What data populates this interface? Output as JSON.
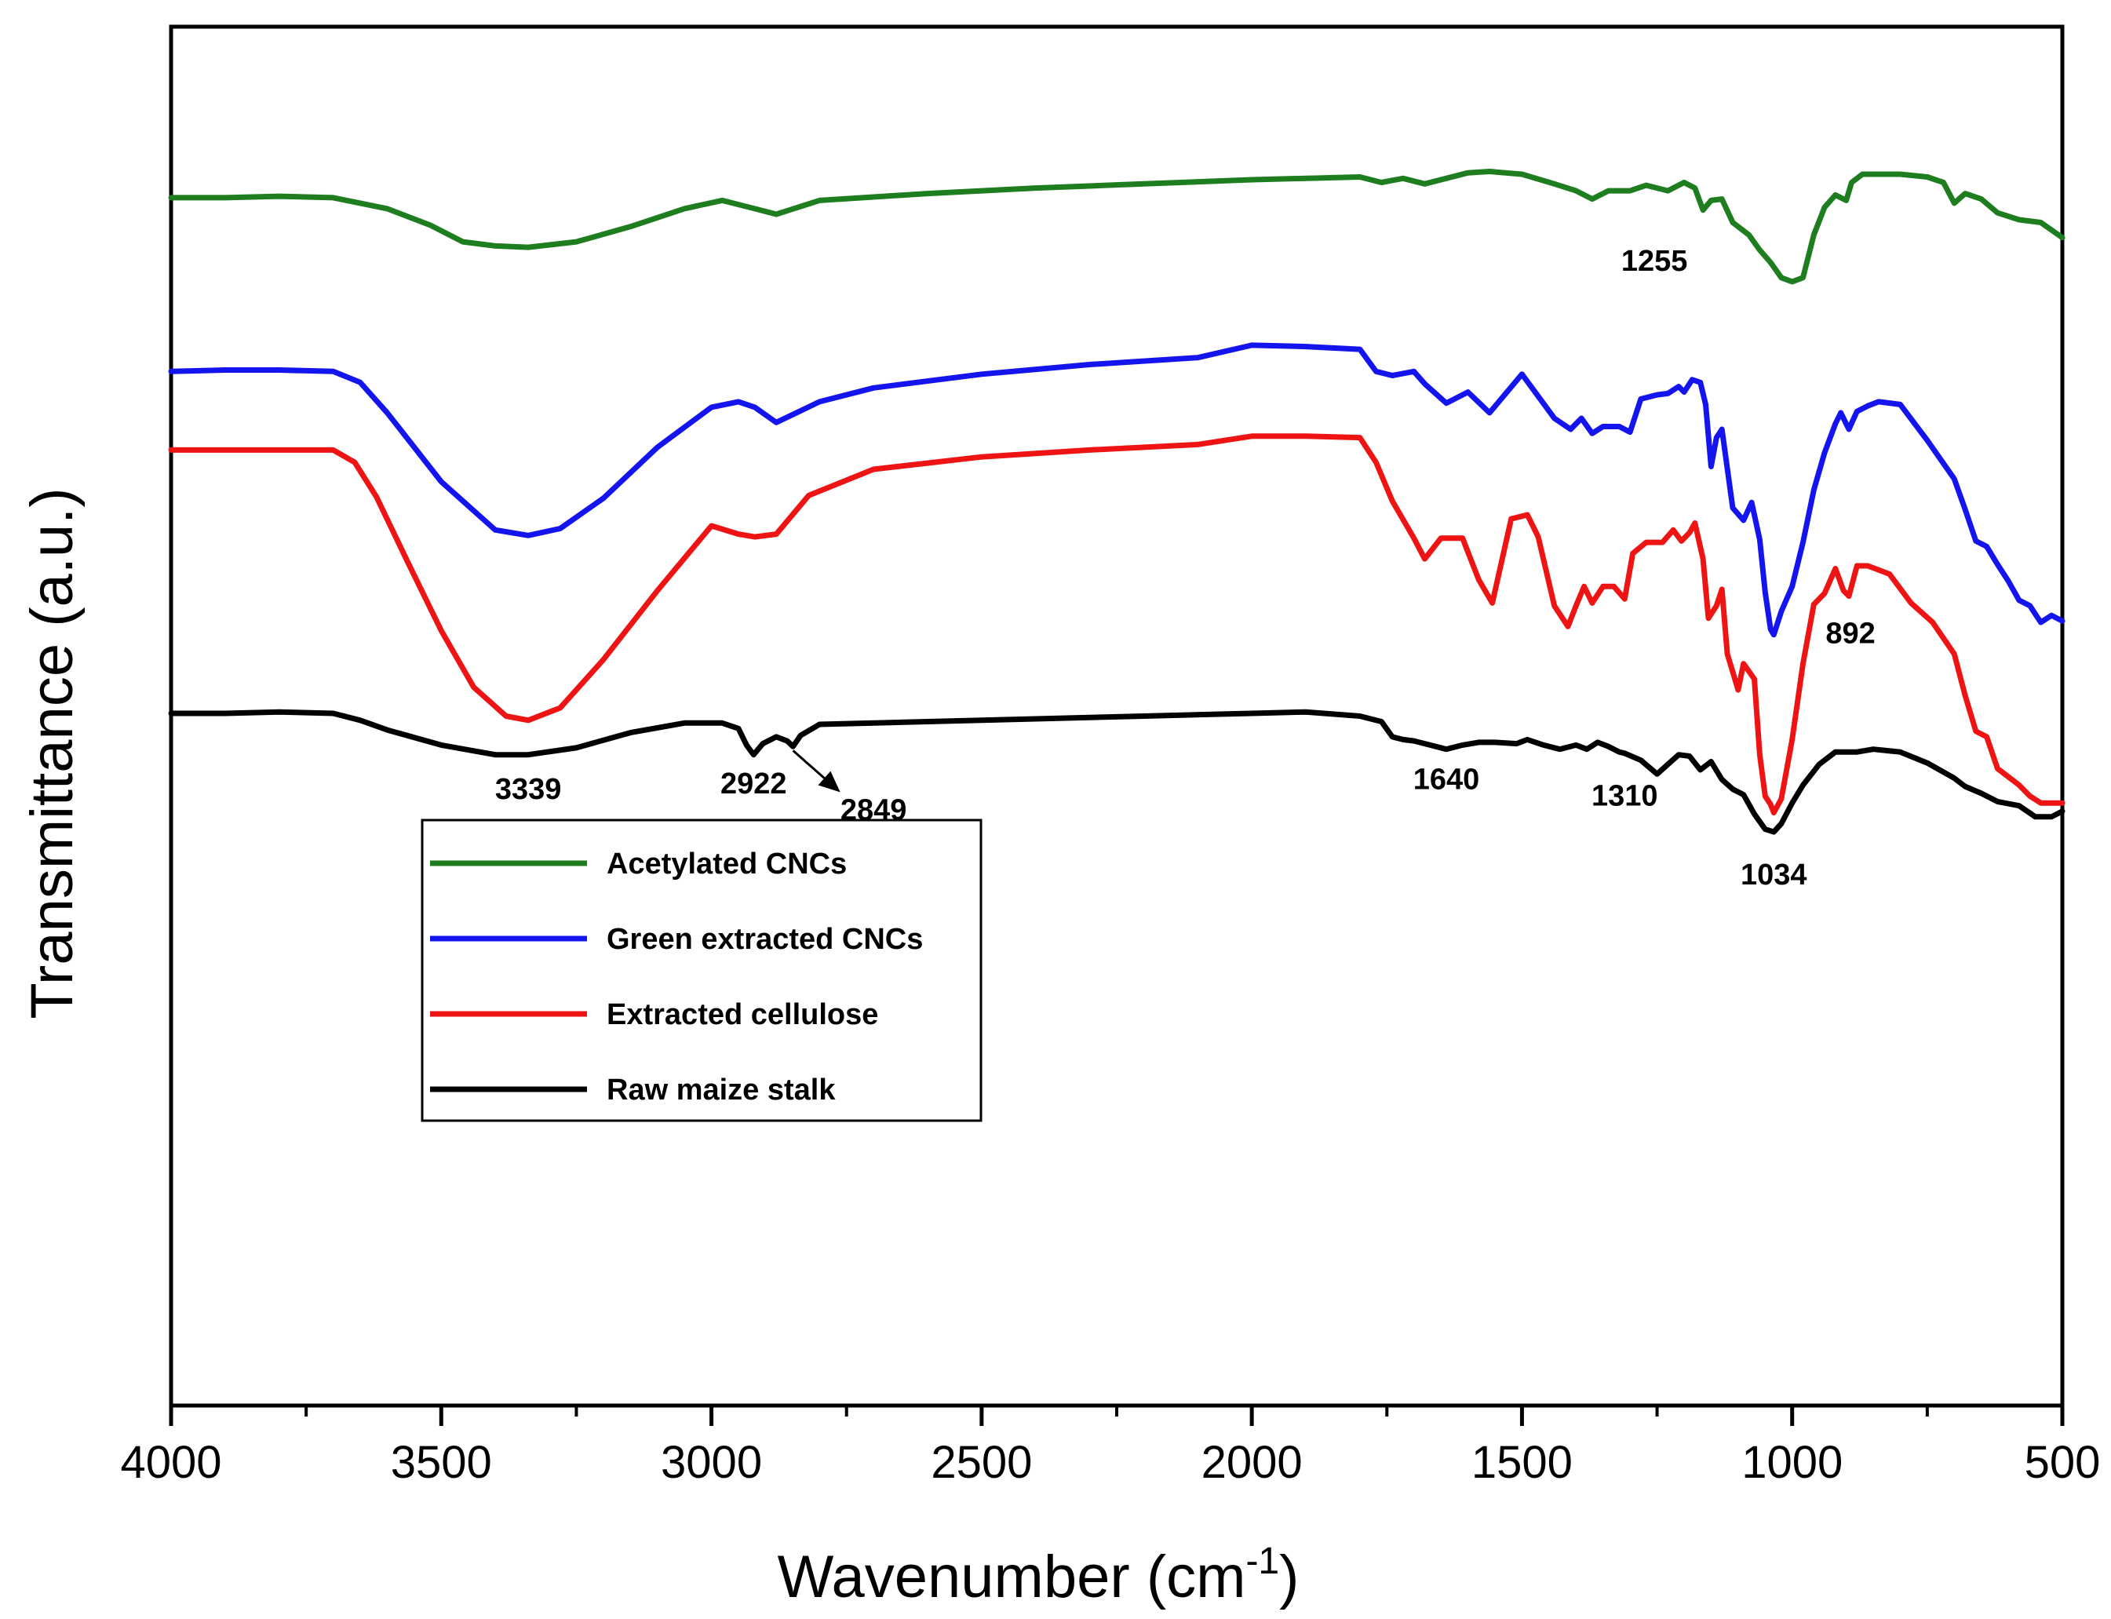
{
  "chart_data": {
    "type": "line",
    "title": "",
    "xlabel": "Wavenumber (cm",
    "xlabel_sup": "-1",
    "xlabel_close": ")",
    "ylabel": "Transmittance (a.u.)",
    "xlim": [
      4000,
      500
    ],
    "ylim": [
      0,
      100
    ],
    "x_ticks": [
      4000,
      3500,
      3000,
      2500,
      2000,
      1500,
      1000,
      500
    ],
    "x_tick_labels": [
      "4000",
      "3500",
      "3000",
      "2500",
      "2000",
      "1500",
      "1000",
      "500"
    ],
    "y_ticks_shown": false,
    "legend_position": "center-left",
    "series": [
      {
        "name": "Acetylated CNCs",
        "color": "#1e7d1e",
        "x": [
          4000,
          3900,
          3800,
          3700,
          3600,
          3520,
          3460,
          3400,
          3339,
          3250,
          3150,
          3050,
          2980,
          2920,
          2880,
          2800,
          2600,
          2400,
          2200,
          2000,
          1800,
          1760,
          1720,
          1680,
          1600,
          1560,
          1500,
          1440,
          1400,
          1370,
          1340,
          1300,
          1270,
          1230,
          1200,
          1180,
          1165,
          1150,
          1130,
          1110,
          1080,
          1060,
          1040,
          1020,
          1000,
          980,
          960,
          940,
          920,
          900,
          890,
          870,
          850,
          800,
          750,
          720,
          700,
          680,
          650,
          620,
          580,
          540,
          500
        ],
        "y": [
          87.6,
          87.6,
          87.7,
          87.6,
          86.8,
          85.6,
          84.4,
          84.1,
          84.0,
          84.4,
          85.5,
          86.8,
          87.4,
          86.8,
          86.4,
          87.4,
          87.9,
          88.3,
          88.6,
          88.9,
          89.1,
          88.7,
          89.0,
          88.6,
          89.4,
          89.5,
          89.3,
          88.6,
          88.1,
          87.5,
          88.1,
          88.1,
          88.5,
          88.1,
          88.7,
          88.3,
          86.7,
          87.4,
          87.5,
          85.8,
          84.9,
          83.8,
          82.9,
          81.8,
          81.5,
          81.8,
          84.9,
          86.9,
          87.8,
          87.4,
          88.7,
          89.3,
          89.3,
          89.3,
          89.1,
          88.7,
          87.2,
          87.9,
          87.5,
          86.5,
          86.0,
          85.8,
          84.7
        ]
      },
      {
        "name": "Green extracted CNCs",
        "color": "#1414ee",
        "x": [
          4000,
          3900,
          3800,
          3700,
          3650,
          3600,
          3500,
          3400,
          3339,
          3280,
          3200,
          3100,
          3000,
          2950,
          2920,
          2880,
          2800,
          2700,
          2500,
          2300,
          2100,
          2000,
          1900,
          1800,
          1770,
          1740,
          1700,
          1680,
          1640,
          1600,
          1560,
          1500,
          1440,
          1410,
          1390,
          1370,
          1350,
          1320,
          1300,
          1280,
          1250,
          1230,
          1210,
          1200,
          1185,
          1170,
          1160,
          1150,
          1140,
          1130,
          1110,
          1090,
          1075,
          1060,
          1050,
          1040,
          1034,
          1020,
          1000,
          980,
          960,
          940,
          920,
          910,
          895,
          880,
          860,
          840,
          800,
          750,
          700,
          680,
          660,
          640,
          620,
          600,
          580,
          560,
          540,
          520,
          500
        ],
        "y": [
          75.0,
          75.1,
          75.1,
          75.0,
          74.2,
          72.0,
          67.0,
          63.5,
          63.1,
          63.6,
          65.8,
          69.5,
          72.4,
          72.8,
          72.4,
          71.3,
          72.8,
          73.8,
          74.8,
          75.5,
          76.0,
          76.9,
          76.8,
          76.6,
          75.0,
          74.7,
          75.0,
          74.1,
          72.7,
          73.5,
          72.0,
          74.8,
          71.6,
          70.8,
          71.6,
          70.5,
          71.0,
          71.0,
          70.6,
          73.0,
          73.3,
          73.4,
          73.9,
          73.5,
          74.4,
          74.2,
          72.6,
          68.1,
          70.2,
          70.8,
          65.1,
          64.2,
          65.5,
          62.8,
          59.0,
          56.3,
          55.9,
          57.6,
          59.4,
          62.6,
          66.4,
          69.1,
          71.2,
          72.0,
          70.8,
          72.1,
          72.5,
          72.8,
          72.6,
          70.0,
          67.2,
          65.0,
          62.7,
          62.3,
          61.0,
          59.8,
          58.4,
          58.0,
          56.8,
          57.3,
          56.9
        ]
      },
      {
        "name": "Extracted cellulose",
        "color": "#ee1414",
        "x": [
          4000,
          3900,
          3800,
          3700,
          3660,
          3620,
          3560,
          3500,
          3440,
          3380,
          3339,
          3280,
          3200,
          3100,
          3000,
          2950,
          2920,
          2880,
          2820,
          2700,
          2500,
          2300,
          2100,
          2000,
          1900,
          1800,
          1770,
          1740,
          1700,
          1680,
          1650,
          1610,
          1580,
          1555,
          1520,
          1490,
          1470,
          1440,
          1415,
          1400,
          1385,
          1370,
          1350,
          1330,
          1310,
          1295,
          1270,
          1240,
          1220,
          1205,
          1190,
          1180,
          1165,
          1155,
          1140,
          1130,
          1120,
          1110,
          1100,
          1090,
          1070,
          1060,
          1050,
          1040,
          1034,
          1020,
          1000,
          980,
          960,
          940,
          920,
          905,
          895,
          880,
          860,
          820,
          780,
          740,
          700,
          680,
          660,
          640,
          620,
          600,
          580,
          560,
          540,
          520,
          500
        ],
        "y": [
          69.3,
          69.3,
          69.3,
          69.3,
          68.4,
          65.9,
          61.0,
          56.2,
          52.1,
          50.0,
          49.7,
          50.6,
          54.1,
          59.1,
          63.8,
          63.2,
          63.0,
          63.2,
          66.0,
          67.9,
          68.8,
          69.3,
          69.7,
          70.3,
          70.3,
          70.2,
          68.4,
          65.6,
          62.9,
          61.4,
          62.9,
          62.9,
          59.9,
          58.2,
          64.3,
          64.6,
          63.0,
          58.0,
          56.5,
          58.0,
          59.4,
          58.2,
          59.4,
          59.4,
          58.5,
          61.8,
          62.6,
          62.6,
          63.5,
          62.7,
          63.3,
          64.0,
          61.4,
          57.1,
          58.0,
          59.2,
          54.5,
          53.2,
          51.9,
          53.8,
          52.7,
          47.2,
          44.2,
          43.6,
          43.0,
          44.0,
          48.3,
          53.8,
          58.1,
          58.9,
          60.7,
          59.1,
          58.7,
          60.9,
          60.9,
          60.3,
          58.2,
          56.8,
          54.5,
          51.5,
          48.9,
          48.5,
          46.2,
          45.6,
          45.0,
          44.2,
          43.7,
          43.7,
          43.7
        ]
      },
      {
        "name": "Raw maize stalk",
        "color": "#000000",
        "x": [
          4000,
          3900,
          3800,
          3700,
          3650,
          3600,
          3500,
          3400,
          3339,
          3250,
          3150,
          3050,
          2980,
          2950,
          2935,
          2922,
          2905,
          2880,
          2860,
          2849,
          2835,
          2800,
          2600,
          2400,
          2200,
          2000,
          1900,
          1800,
          1760,
          1740,
          1720,
          1700,
          1670,
          1640,
          1610,
          1580,
          1550,
          1510,
          1490,
          1460,
          1430,
          1400,
          1380,
          1360,
          1340,
          1320,
          1310,
          1280,
          1250,
          1230,
          1210,
          1190,
          1170,
          1150,
          1130,
          1110,
          1090,
          1070,
          1050,
          1034,
          1020,
          1000,
          980,
          950,
          920,
          880,
          850,
          800,
          750,
          700,
          680,
          650,
          620,
          580,
          550,
          520,
          500
        ],
        "y": [
          50.2,
          50.2,
          50.3,
          50.2,
          49.7,
          49.0,
          47.9,
          47.2,
          47.2,
          47.7,
          48.8,
          49.5,
          49.5,
          49.1,
          47.9,
          47.2,
          48.0,
          48.5,
          48.2,
          47.8,
          48.6,
          49.4,
          49.6,
          49.8,
          50.0,
          50.2,
          50.3,
          50.0,
          49.6,
          48.5,
          48.3,
          48.2,
          47.9,
          47.6,
          47.9,
          48.1,
          48.1,
          48.0,
          48.3,
          47.9,
          47.6,
          47.9,
          47.6,
          48.1,
          47.8,
          47.4,
          47.3,
          46.8,
          45.8,
          46.5,
          47.2,
          47.1,
          46.1,
          46.7,
          45.4,
          44.7,
          44.3,
          42.9,
          41.8,
          41.6,
          42.2,
          43.7,
          45.0,
          46.5,
          47.4,
          47.4,
          47.6,
          47.4,
          46.6,
          45.5,
          44.9,
          44.4,
          43.8,
          43.5,
          42.7,
          42.7,
          43.1
        ]
      }
    ],
    "annotations": [
      {
        "text": "3339",
        "x": 3339,
        "y": 44.0
      },
      {
        "text": "2922",
        "x": 2922,
        "y": 44.4
      },
      {
        "text": "2849",
        "x": 2700,
        "y": 42.5
      },
      {
        "text": "1640",
        "x": 1640,
        "y": 44.7
      },
      {
        "text": "1310",
        "x": 1310,
        "y": 43.5
      },
      {
        "text": "1034",
        "x": 1034,
        "y": 37.8
      },
      {
        "text": "892",
        "x": 892,
        "y": 55.3
      },
      {
        "text": "1255",
        "x": 1255,
        "y": 82.3
      }
    ],
    "arrow": {
      "from_x": 2849,
      "from_y": 47.5,
      "to_x": 2765,
      "to_y": 44.6
    }
  }
}
